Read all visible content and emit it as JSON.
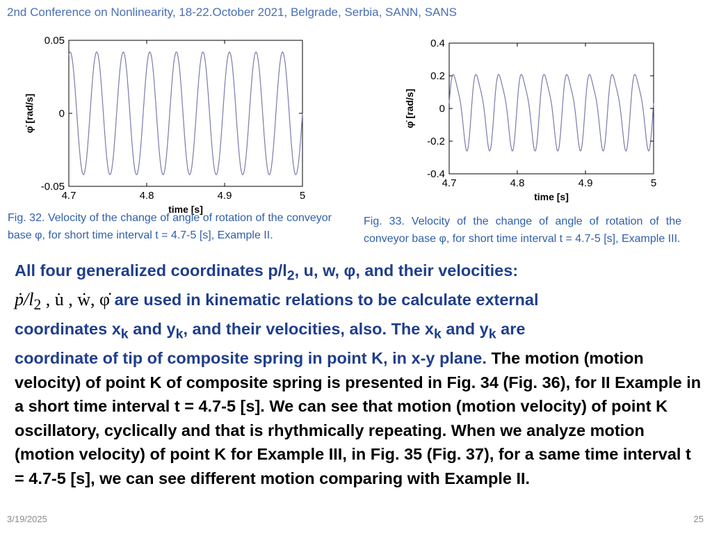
{
  "header": {
    "conference": "2nd Conference on Nonlinearity, 18-22.October 2021, Belgrade, Serbia, SANN, SANS"
  },
  "chart_data": [
    {
      "type": "line",
      "xlabel": "time [s]",
      "ylabel": "φ̇ [rad/s]",
      "x_ticks": [
        "4.7",
        "4.8",
        "4.9",
        "5"
      ],
      "y_ticks": [
        "0.05",
        "0",
        "-0.05"
      ],
      "xlim": [
        4.7,
        5.0
      ],
      "ylim": [
        -0.05,
        0.05
      ],
      "signal": {
        "amplitude": 0.042,
        "cycles": 8.8,
        "phase": 0.2
      },
      "series": [
        {
          "color": "#7a7aaa"
        }
      ]
    },
    {
      "type": "line",
      "xlabel": "time [s]",
      "ylabel": "φ̇ [rad/s]",
      "x_ticks": [
        "4.7",
        "4.8",
        "4.9",
        "5"
      ],
      "y_ticks": [
        "0.4",
        "0.2",
        "0",
        "-0.2",
        "-0.4"
      ],
      "xlim": [
        4.7,
        5.0
      ],
      "ylim": [
        -0.4,
        0.4
      ],
      "signal": {
        "amplitude": 0.22,
        "cycles": 9.0,
        "phase": 0.0,
        "second_harmonic": 0.05
      },
      "series": [
        {
          "color": "#7a7aaa"
        }
      ]
    }
  ],
  "captions": {
    "fig32": "Fig. 32. Velocity of the change of angle of rotation of the conveyor base φ, for short time interval t = 4.7-5 [s], Example II.",
    "fig33": "Fig. 33. Velocity of the change of angle of rotation of the conveyor base φ, for short time interval t = 4.7-5 [s], Example III."
  },
  "body": {
    "line1_a": "All four generalized coordinates p/l",
    "line1_sub": "2",
    "line1_b": ", u, w, φ, and their velocities:",
    "formula_p": "ṗ/l",
    "formula_sub": "2",
    "formula_rest": " , u̇ , ẇ, φ̇",
    "line2": " are used in kinematic relations to be calculate external",
    "line3_a": "coordinates x",
    "line3_sub_k1": "k",
    "line3_b": " and y",
    "line3_sub_k2": "k",
    "line3_c": ", and their velocities, also. The x",
    "line3_sub_k3": "k",
    "line3_d": " and y",
    "line3_sub_k4": "k",
    "line3_e": " are",
    "line4": "coordinate of tip of composite spring in point K, in x-y plane.",
    "rest": " The motion (motion velocity) of point K of composite spring is presented in Fig. 34 (Fig. 36), for II Example in a short time interval t = 4.7-5 [s]. We can see that motion (motion velocity) of point K oscillatory, cyclically and that is rhythmically repeating. When we analyze motion (motion velocity) of point K for Example III, in Fig. 35 (Fig. 37), for a same time interval t = 4.7-5 [s], we can see different motion comparing with Example II."
  },
  "footer": {
    "date": "3/19/2025",
    "page": "25"
  }
}
